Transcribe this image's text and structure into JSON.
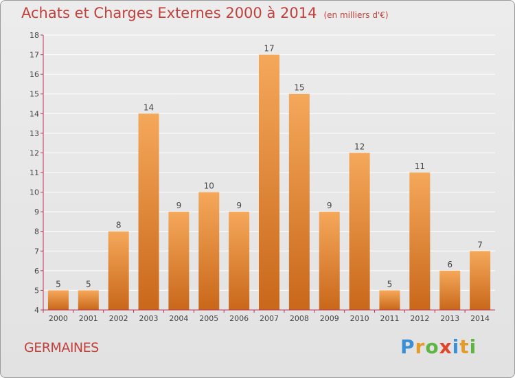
{
  "header": {
    "title": "Achats et Charges Externes 2000 à 2014",
    "subtitle": "(en milliers d'€)"
  },
  "place": "GERMAINES",
  "brand": {
    "text": "Proxiti",
    "letters": [
      {
        "ch": "P",
        "color": "#3a8fd6"
      },
      {
        "ch": "r",
        "color": "#e39b2a"
      },
      {
        "ch": "o",
        "color": "#5fb544"
      },
      {
        "ch": "x",
        "color": "#e0462b"
      },
      {
        "ch": "i",
        "color": "#3a8fd6"
      },
      {
        "ch": "t",
        "color": "#e39b2a"
      },
      {
        "ch": "i",
        "color": "#5fb544"
      }
    ]
  },
  "colors": {
    "title": "#c0413c",
    "bar_top": "#f5a85a",
    "bar_bottom": "#c9671a",
    "axis": "#c0305a",
    "grid": "#ffffff"
  },
  "chart_data": {
    "type": "bar",
    "categories": [
      "2000",
      "2001",
      "2002",
      "2003",
      "2004",
      "2005",
      "2006",
      "2007",
      "2008",
      "2009",
      "2010",
      "2011",
      "2012",
      "2013",
      "2014"
    ],
    "values": [
      5,
      5,
      8,
      14,
      9,
      10,
      9,
      17,
      15,
      9,
      12,
      5,
      11,
      6,
      7
    ],
    "ylim": [
      4,
      18
    ],
    "yticks": [
      4,
      5,
      6,
      7,
      8,
      9,
      10,
      11,
      12,
      13,
      14,
      15,
      16,
      17,
      18
    ],
    "grid": true,
    "data_labels": true
  }
}
